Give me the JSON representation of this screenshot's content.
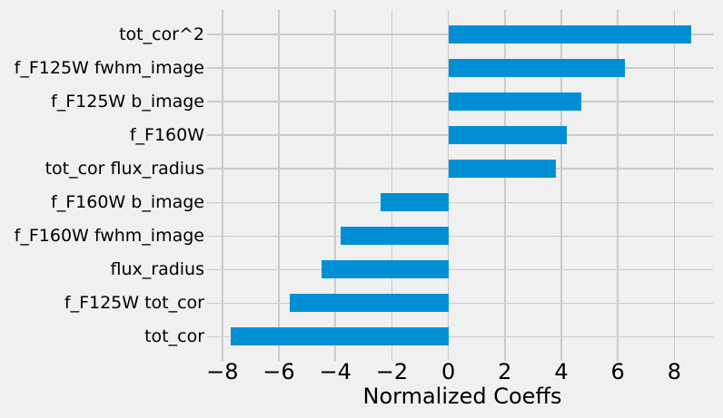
{
  "chart_data": {
    "type": "bar",
    "orientation": "horizontal",
    "xlabel": "Normalized Coeffs",
    "categories": [
      "tot_cor^2",
      "f_F125W fwhm_image",
      "f_F125W b_image",
      "f_F160W",
      "tot_cor flux_radius",
      "f_F160W b_image",
      "f_F160W fwhm_image",
      "flux_radius",
      "f_F125W tot_cor",
      "tot_cor"
    ],
    "values": [
      8.6,
      6.25,
      4.7,
      4.2,
      3.8,
      -2.4,
      -3.8,
      -4.5,
      -5.6,
      -7.7
    ],
    "xlim": [
      -8.38,
      9.37
    ],
    "xticks": [
      -8,
      -6,
      -4,
      -2,
      0,
      2,
      4,
      6,
      8
    ],
    "xtick_labels": [
      "−8",
      "−6",
      "−4",
      "−2",
      "0",
      "2",
      "4",
      "6",
      "8"
    ],
    "grid": true,
    "legend": null,
    "colors": {
      "bar": "#008fd5",
      "background": "#f0f0f0",
      "grid": "#cbcbcb",
      "text": "#000000"
    }
  }
}
